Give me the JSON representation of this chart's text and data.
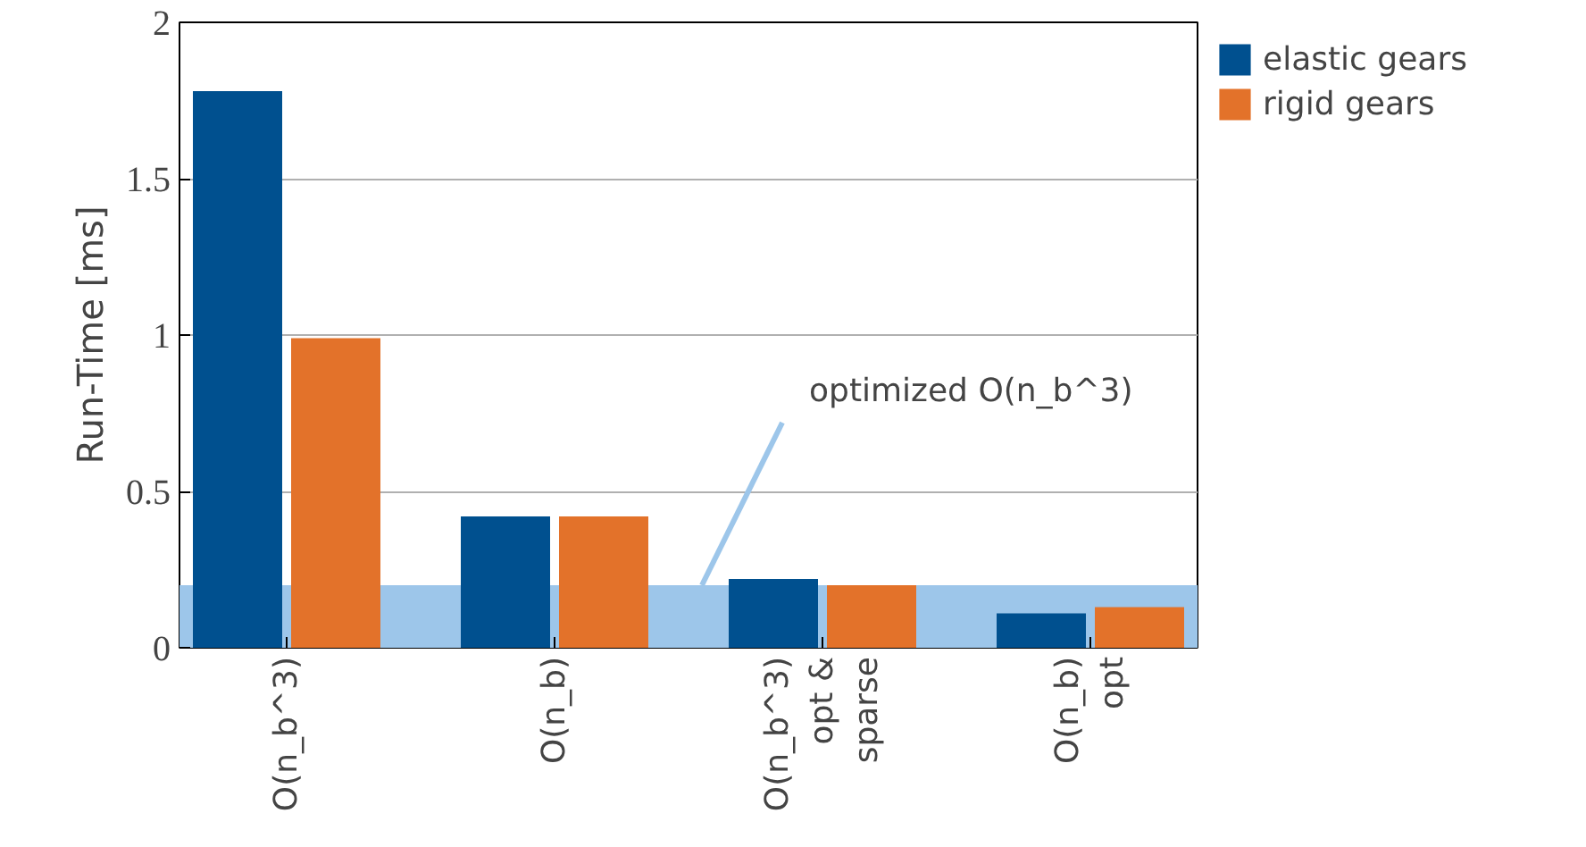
{
  "chart_data": {
    "type": "bar",
    "ylabel": "Run-Time [ms]",
    "categories": [
      "O(n_b^3)",
      "O(n_b)",
      "O(n_b^3)\nopt &\nsparse",
      "O(n_b)\nopt"
    ],
    "series": [
      {
        "name": "elastic gears",
        "color": "#00508f",
        "values": [
          1.78,
          0.42,
          0.22,
          0.11
        ]
      },
      {
        "name": "rigid gears",
        "color": "#e3722a",
        "values": [
          0.99,
          0.42,
          0.2,
          0.13
        ]
      }
    ],
    "ylim": [
      0,
      2
    ],
    "yticks": [
      0,
      0.5,
      1,
      1.5,
      2
    ],
    "grid": "y",
    "legend": "top right",
    "bands": [
      {
        "axis": "y",
        "from": 0,
        "to": 0.2,
        "label": "optimized O(n_b^3)",
        "color": "#9dc6ea"
      }
    ]
  }
}
